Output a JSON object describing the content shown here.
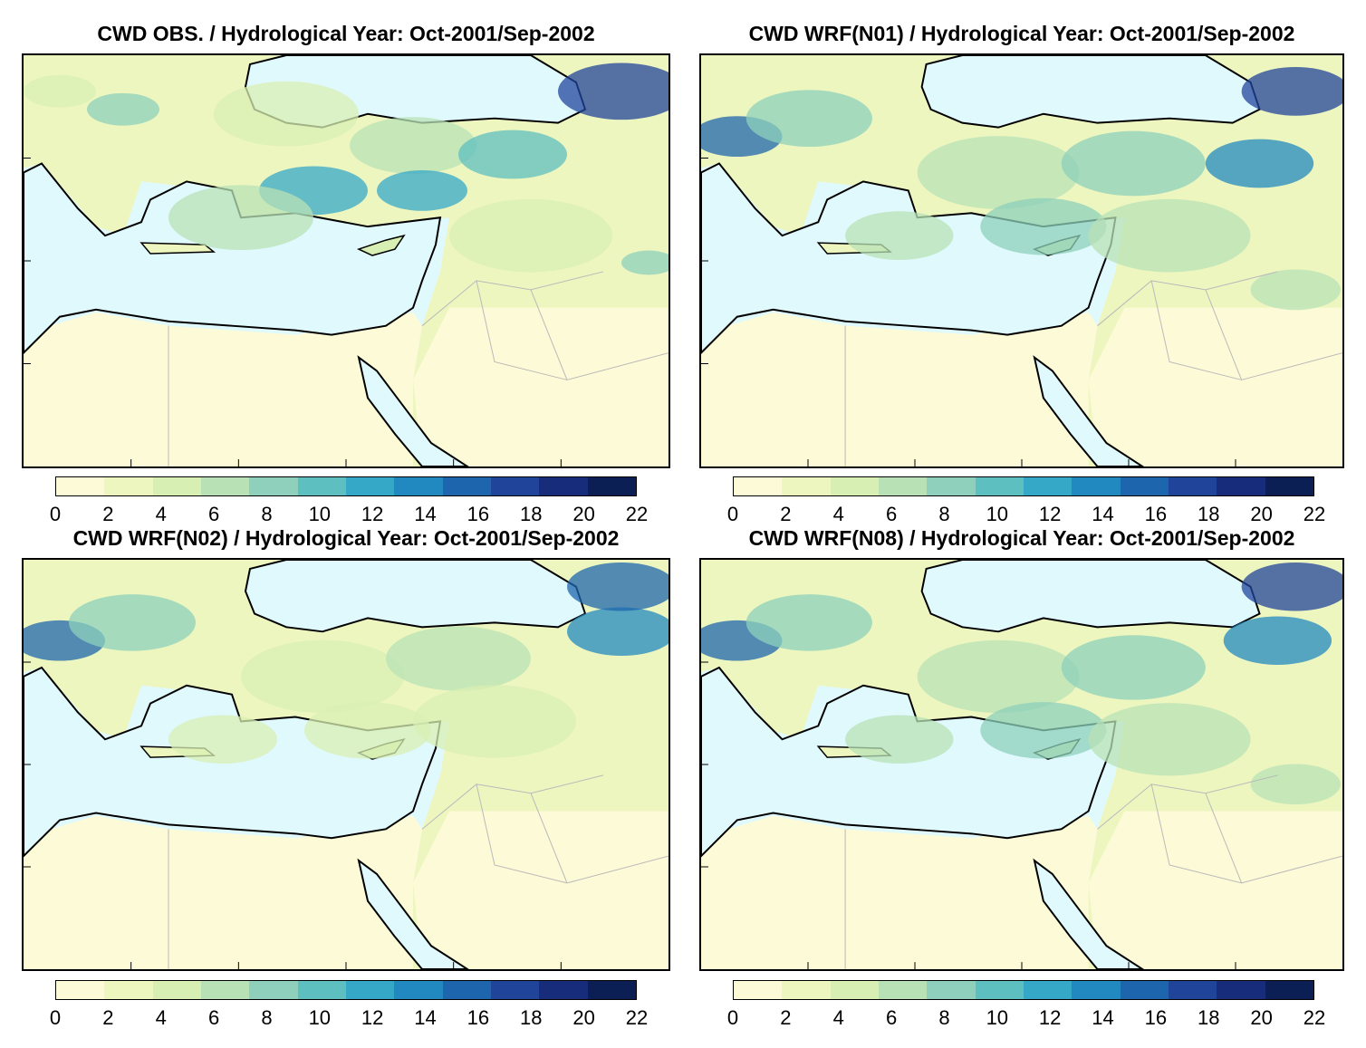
{
  "panels": [
    {
      "title": "CWD OBS. / Hydrological Year: Oct-2001/Sep-2002",
      "variant": "obs"
    },
    {
      "title": "CWD WRF(N01) / Hydrological Year: Oct-2001/Sep-2002",
      "variant": "n01"
    },
    {
      "title": "CWD WRF(N02) / Hydrological Year: Oct-2001/Sep-2002",
      "variant": "n02"
    },
    {
      "title": "CWD WRF(N08) / Hydrological Year: Oct-2001/Sep-2002",
      "variant": "n08"
    }
  ],
  "colorbar": {
    "ticks": [
      "0",
      "2",
      "4",
      "6",
      "8",
      "10",
      "12",
      "14",
      "16",
      "18",
      "20",
      "22"
    ],
    "colors": [
      "#fdfbd7",
      "#eef6c0",
      "#d8efb3",
      "#b8e1b6",
      "#8ed0bb",
      "#5ebfc0",
      "#35a8c8",
      "#2188c0",
      "#1d65ad",
      "#21449b",
      "#182c7c",
      "#0b1f55"
    ]
  },
  "colors": {
    "sea": "#e0f9fd",
    "land_desert": "#fdfbd7",
    "coastline": "#000000",
    "borders": "#b9b9b9"
  }
}
